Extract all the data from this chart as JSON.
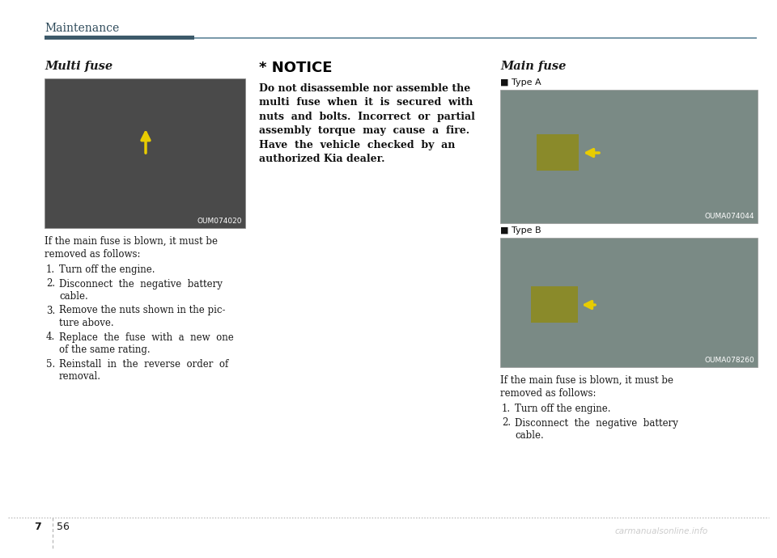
{
  "page_bg": "#ffffff",
  "header_text": "Maintenance",
  "header_color": "#2e4a5a",
  "header_bar_dark": "#3d5a6a",
  "header_bar_light": "#7a9aaa",
  "footer_page_left": "7",
  "footer_page_right": "56",
  "footer_watermark": "carmanualsonline.info",
  "col1_title": "Multi fuse",
  "col1_img_label": "OUM074020",
  "col1_body_intro": [
    "If the main fuse is blown, it must be",
    "removed as follows:"
  ],
  "col1_body_steps": [
    [
      "1.",
      "Turn off the engine."
    ],
    [
      "2.",
      "Disconnect  the  negative  battery\ncable."
    ],
    [
      "3.",
      "Remove the nuts shown in the pic-\nture above."
    ],
    [
      "4.",
      "Replace  the  fuse  with  a  new  one\nof the same rating."
    ],
    [
      "5.",
      "Reinstall  in  the  reverse  order  of\nremoval."
    ]
  ],
  "col2_notice_title": "* NOTICE",
  "col2_notice_body": "Do not disassemble nor assemble the\nmulti  fuse  when  it  is  secured  with\nnuts  and  bolts.  Incorrect  or  partial\nassembly  torque  may  cause  a  fire.\nHave  the  vehicle  checked  by  an\nauthorized Kia dealer.",
  "col3_title": "Main fuse",
  "col3_label_a": "■ Type A",
  "col3_img_label_a": "OUMA074044",
  "col3_label_b": "■ Type B",
  "col3_img_label_b": "OUMA078260",
  "col3_body_intro": [
    "If the main fuse is blown, it must be",
    "removed as follows:"
  ],
  "col3_body_steps": [
    [
      "1.",
      "Turn off the engine."
    ],
    [
      "2.",
      "Disconnect  the  negative  battery\ncable."
    ]
  ],
  "text_color": "#1a1a1a",
  "dotted_line_color": "#aaaaaa",
  "watermark_color": "#cccccc",
  "img1_color": "#4a4a4a",
  "img2a_color": "#7a8a85",
  "img2b_color": "#7a8a85"
}
